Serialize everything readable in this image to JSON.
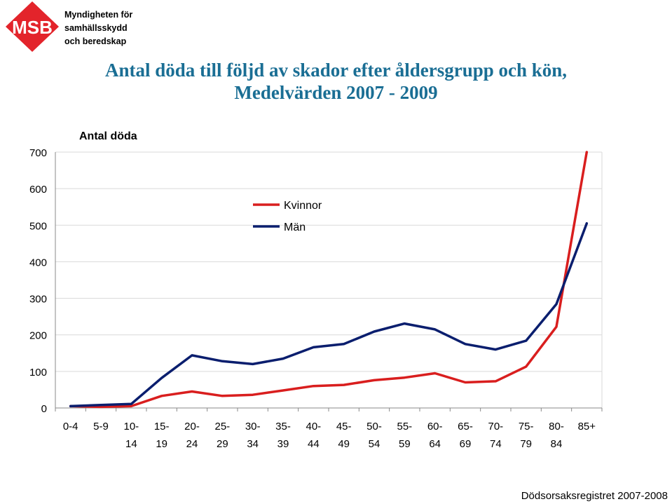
{
  "header": {
    "logo_abbr": "MSB",
    "logo_lines": [
      "Myndigheten för",
      "samhällsskydd",
      "och beredskap"
    ]
  },
  "colors": {
    "title": "#1a6e94",
    "kvinnor": "#d91e1e",
    "man": "#0a1e6e",
    "grid": "#d9d9d9",
    "logo_red": "#e3242b"
  },
  "chart_data": {
    "type": "line",
    "title": "Antal döda till följd av skador efter åldersgrupp och kön,",
    "subtitle": "Medelvärden 2007 - 2009",
    "ylabel": "Antal döda",
    "xlabel": "",
    "ylim": [
      0,
      700
    ],
    "yticks": [
      "0",
      "100",
      "200",
      "300",
      "400",
      "500",
      "600",
      "700"
    ],
    "grid": true,
    "legend_position": "top-center",
    "categories": [
      [
        "0-4"
      ],
      [
        "5-9"
      ],
      [
        "10-",
        "14"
      ],
      [
        "15-",
        "19"
      ],
      [
        "20-",
        "24"
      ],
      [
        "25-",
        "29"
      ],
      [
        "30-",
        "34"
      ],
      [
        "35-",
        "39"
      ],
      [
        "40-",
        "44"
      ],
      [
        "45-",
        "49"
      ],
      [
        "50-",
        "54"
      ],
      [
        "55-",
        "59"
      ],
      [
        "60-",
        "64"
      ],
      [
        "65-",
        "69"
      ],
      [
        "70-",
        "74"
      ],
      [
        "75-",
        "79"
      ],
      [
        "80-",
        "84"
      ],
      [
        "85+"
      ]
    ],
    "series": [
      {
        "name": "Kvinnor",
        "color": "#d91e1e",
        "values": [
          5,
          3,
          5,
          33,
          45,
          33,
          36,
          48,
          60,
          63,
          76,
          83,
          95,
          70,
          73,
          113,
          222,
          700
        ]
      },
      {
        "name": "Män",
        "color": "#0a1e6e",
        "values": [
          5,
          8,
          11,
          82,
          144,
          128,
          120,
          135,
          166,
          175,
          209,
          231,
          215,
          175,
          160,
          184,
          284,
          505
        ]
      }
    ]
  },
  "footer": {
    "source": "Dödsorsaksregistret 2007-2008"
  }
}
